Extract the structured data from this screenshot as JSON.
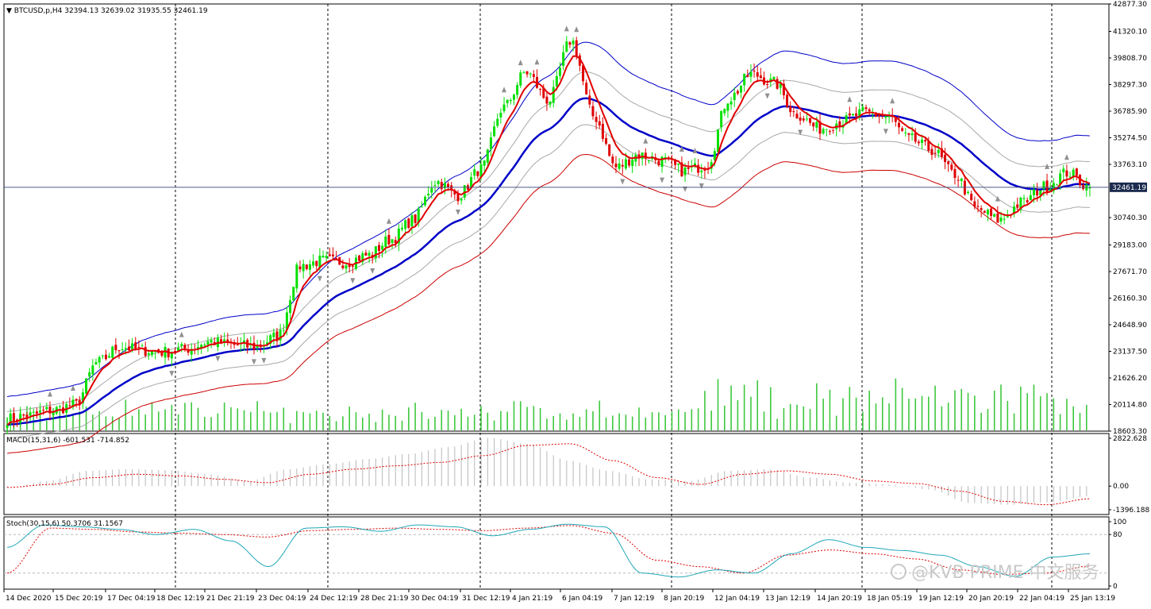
{
  "app": {
    "platform": "MetaTrader",
    "symbol_title": "BTCUSD,p,H4",
    "ohlc_text": "32394.13 32639.02 31935.55 32461.19",
    "watermark": "@KVB PRIME 中文服务"
  },
  "colors": {
    "bull": "#00e000",
    "bear": "#e00000",
    "ema_fast": "#e00000",
    "ema_slow": "#0000c8",
    "band_upper": "#0000c8",
    "band_lower": "#cc0000",
    "band_inner": "#a8a8a8",
    "volume": "#3ec83e",
    "macd_hist": "#b8b8b8",
    "macd_signal": "#e00000",
    "stoch_main": "#20a8b8",
    "stoch_signal": "#e00000",
    "fractal": "#909090"
  },
  "chart_data": [
    {
      "type": "candlestick",
      "panel": "price",
      "ylim": [
        18603.3,
        42877.3
      ],
      "y_ticks": [
        "42877.30",
        "41320.10",
        "39808.70",
        "38297.30",
        "36785.90",
        "35274.50",
        "33763.10",
        "32461.19",
        "30740.30",
        "29183.00",
        "27671.70",
        "26160.30",
        "24648.90",
        "23137.50",
        "21626.20",
        "20114.80",
        "18603.30"
      ],
      "current_price": "32461.19",
      "x_labels": [
        "14 Dec 2020",
        "15 Dec 20:19",
        "17 Dec 04:19",
        "18 Dec 12:19",
        "21 Dec 21:19",
        "23 Dec 04:19",
        "24 Dec 12:19",
        "28 Dec 21:19",
        "30 Dec 04:19",
        "31 Dec 12:19",
        "4 Jan 21:19",
        "6 Jan 04:19",
        "7 Jan 12:19",
        "8 Jan 20:19",
        "12 Jan 04:19",
        "13 Jan 12:19",
        "14 Jan 20:19",
        "18 Jan 05:19",
        "19 Jan 12:19",
        "20 Jan 20:19",
        "22 Jan 04:19",
        "25 Jan 13:19"
      ],
      "session_separators": [
        "15 Dec 20:19",
        "24 Dec 12:19",
        "31 Dec 12:19",
        "8 Jan 20:19",
        "18 Jan 05:19",
        "25 Jan 13:19"
      ],
      "close_anchors": [
        19300,
        19500,
        19800,
        20100,
        22500,
        23400,
        23200,
        23100,
        23300,
        23700,
        23500,
        23400,
        24000,
        28000,
        28300,
        28200,
        28600,
        29500,
        30600,
        32800,
        32000,
        33500,
        37000,
        39000,
        37400,
        40800,
        36500,
        33600,
        34300,
        34000,
        33400,
        33700,
        37500,
        38900,
        38400,
        36600,
        35800,
        36200,
        36700,
        36500,
        35200,
        34600,
        33200,
        31200,
        30600,
        31600,
        32500,
        33300,
        32461.19
      ],
      "last_candle": {
        "open": 32394.13,
        "high": 32639.02,
        "low": 31935.55,
        "close": 32461.19
      },
      "series": [
        {
          "name": "EMA fast",
          "style": "red line"
        },
        {
          "name": "EMA slow",
          "style": "thick blue line"
        },
        {
          "name": "Upper envelope",
          "style": "thin blue line"
        },
        {
          "name": "Lower envelope",
          "style": "thin red line"
        },
        {
          "name": "Inner envelopes",
          "style": "thin gray lines"
        },
        {
          "name": "Volume",
          "style": "green histogram at bottom"
        },
        {
          "name": "Fractals",
          "style": "gray arrows above highs / below lows"
        }
      ]
    },
    {
      "type": "macd",
      "panel": "macd",
      "label": "MACD(15,31,6) -601.531 -714.852",
      "ylim": [
        -1396.188,
        2822.628
      ],
      "y_ticks": [
        "2822.628",
        "0.00",
        "-1396.188"
      ],
      "histogram_anchors": [
        -100,
        300,
        900,
        1000,
        950,
        700,
        300,
        1000,
        1300,
        1600,
        1900,
        2300,
        2850,
        2500,
        1500,
        900,
        400,
        300,
        900,
        1000,
        500,
        200,
        100,
        -200,
        -1000,
        -1100,
        -950,
        -600
      ],
      "signal_anchors": [
        -80,
        100,
        500,
        700,
        600,
        400,
        200,
        700,
        1000,
        1200,
        1400,
        1800,
        2400,
        2500,
        1500,
        500,
        100,
        700,
        900,
        700,
        300,
        150,
        -300,
        -900,
        -1100,
        -750
      ]
    },
    {
      "type": "stochastic",
      "panel": "stoch",
      "label": "Stoch(30,15,6) 50.3706 31.1567",
      "ylim": [
        0,
        100
      ],
      "y_ticks": [
        "100",
        "80",
        "0"
      ],
      "levels": [
        80,
        20
      ],
      "main_anchors": [
        60,
        95,
        92,
        88,
        80,
        88,
        70,
        30,
        90,
        92,
        85,
        95,
        92,
        78,
        88,
        96,
        92,
        20,
        14,
        25,
        20,
        50,
        72,
        60,
        55,
        48,
        30,
        15,
        45,
        50
      ],
      "signal_anchors": [
        20,
        90,
        88,
        84,
        82,
        80,
        76,
        86,
        88,
        90,
        88,
        86,
        90,
        94,
        82,
        40,
        30,
        20,
        48,
        56,
        50,
        42,
        25,
        18,
        20,
        31
      ]
    }
  ]
}
